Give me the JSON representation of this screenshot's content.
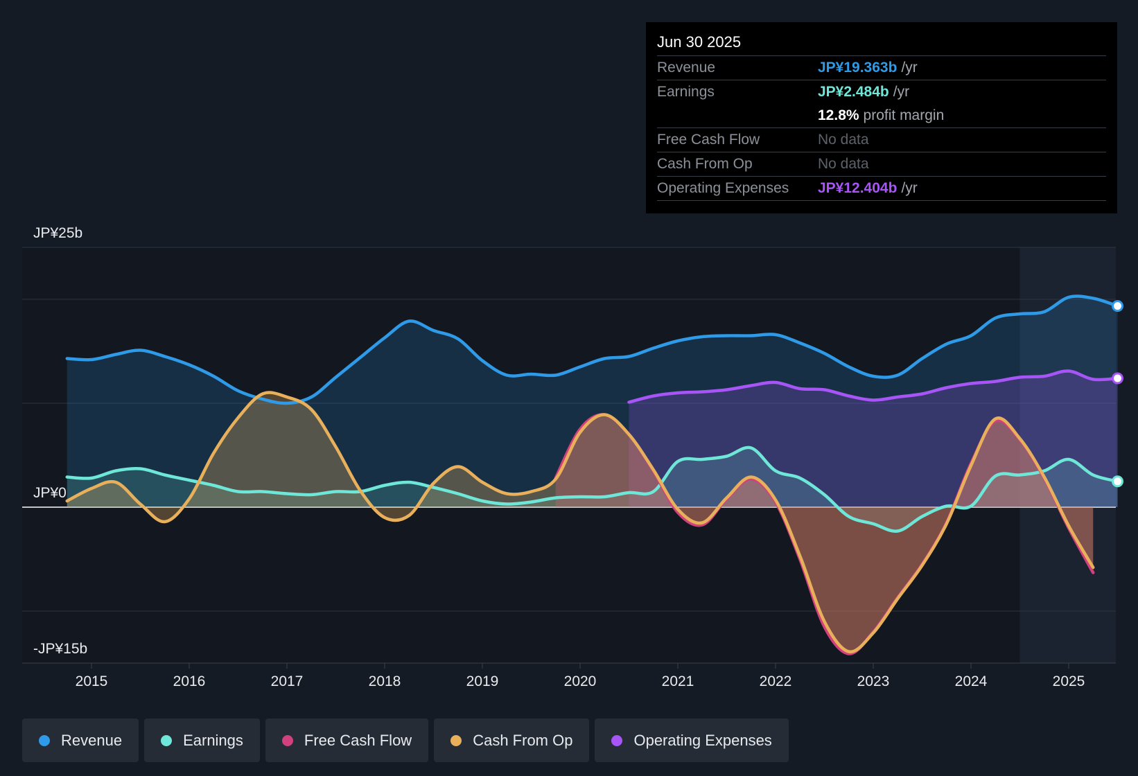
{
  "tooltip": {
    "date": "Jun 30 2025",
    "rows": [
      {
        "label": "Revenue",
        "value": "JP¥19.363b",
        "unit": "/yr",
        "color": "#2f9ae8"
      },
      {
        "label": "Earnings",
        "value": "JP¥2.484b",
        "unit": "/yr",
        "color": "#6ee7d8"
      },
      {
        "label": "",
        "value": "12.8%",
        "unit": "profit margin",
        "color": "#ffffff"
      },
      {
        "label": "Free Cash Flow",
        "value": "No data",
        "unit": "",
        "color": "#5d6269"
      },
      {
        "label": "Cash From Op",
        "value": "No data",
        "unit": "",
        "color": "#5d6269"
      },
      {
        "label": "Operating Expenses",
        "value": "JP¥12.404b",
        "unit": "/yr",
        "color": "#a855f7"
      }
    ]
  },
  "legend": [
    {
      "label": "Revenue",
      "color": "#2f9ae8"
    },
    {
      "label": "Earnings",
      "color": "#6ee7d8"
    },
    {
      "label": "Free Cash Flow",
      "color": "#d0417d"
    },
    {
      "label": "Cash From Op",
      "color": "#e9b05c"
    },
    {
      "label": "Operating Expenses",
      "color": "#a855f7"
    }
  ],
  "chart_data": {
    "type": "line",
    "title": "",
    "y_unit": "JP¥ billions",
    "ylim": [
      -15,
      25
    ],
    "y_axis_labels": [
      {
        "value": 25,
        "label": "JP¥25b"
      },
      {
        "value": 0,
        "label": "JP¥0"
      },
      {
        "value": -15,
        "label": "-JP¥15b"
      }
    ],
    "gridlines": [
      25,
      20,
      10,
      0,
      -10
    ],
    "xlim": [
      2014.3,
      2025.5
    ],
    "x_ticks": [
      {
        "value": 2015,
        "label": "2015"
      },
      {
        "value": 2016,
        "label": "2016"
      },
      {
        "value": 2017,
        "label": "2017"
      },
      {
        "value": 2018,
        "label": "2018"
      },
      {
        "value": 2019,
        "label": "2019"
      },
      {
        "value": 2020,
        "label": "2020"
      },
      {
        "value": 2021,
        "label": "2021"
      },
      {
        "value": 2022,
        "label": "2022"
      },
      {
        "value": 2023,
        "label": "2023"
      },
      {
        "value": 2024,
        "label": "2024"
      },
      {
        "value": 2025,
        "label": "2025"
      }
    ],
    "forecast_shade_start": 2024.5,
    "series": [
      {
        "name": "Revenue",
        "color": "#2f9ae8",
        "points": [
          [
            2014.75,
            14.3
          ],
          [
            2015,
            14.2
          ],
          [
            2015.25,
            14.7
          ],
          [
            2015.5,
            15.1
          ],
          [
            2015.75,
            14.5
          ],
          [
            2016,
            13.7
          ],
          [
            2016.25,
            12.6
          ],
          [
            2016.5,
            11.2
          ],
          [
            2016.75,
            10.4
          ],
          [
            2017,
            10.0
          ],
          [
            2017.25,
            10.6
          ],
          [
            2017.5,
            12.5
          ],
          [
            2017.75,
            14.4
          ],
          [
            2018,
            16.3
          ],
          [
            2018.25,
            17.9
          ],
          [
            2018.5,
            17.0
          ],
          [
            2018.75,
            16.2
          ],
          [
            2019,
            14.1
          ],
          [
            2019.25,
            12.7
          ],
          [
            2019.5,
            12.8
          ],
          [
            2019.75,
            12.7
          ],
          [
            2020,
            13.5
          ],
          [
            2020.25,
            14.3
          ],
          [
            2020.5,
            14.5
          ],
          [
            2020.75,
            15.3
          ],
          [
            2021,
            16.0
          ],
          [
            2021.25,
            16.4
          ],
          [
            2021.5,
            16.5
          ],
          [
            2021.75,
            16.5
          ],
          [
            2022,
            16.6
          ],
          [
            2022.25,
            15.8
          ],
          [
            2022.5,
            14.8
          ],
          [
            2022.75,
            13.5
          ],
          [
            2023,
            12.6
          ],
          [
            2023.25,
            12.7
          ],
          [
            2023.5,
            14.3
          ],
          [
            2023.75,
            15.7
          ],
          [
            2024,
            16.5
          ],
          [
            2024.25,
            18.2
          ],
          [
            2024.5,
            18.6
          ],
          [
            2024.75,
            18.8
          ],
          [
            2025,
            20.2
          ],
          [
            2025.25,
            20.1
          ],
          [
            2025.5,
            19.36
          ]
        ]
      },
      {
        "name": "Operating Expenses",
        "color": "#a855f7",
        "points": [
          [
            2020.5,
            10.1
          ],
          [
            2020.75,
            10.7
          ],
          [
            2021,
            11.0
          ],
          [
            2021.25,
            11.1
          ],
          [
            2021.5,
            11.3
          ],
          [
            2021.75,
            11.7
          ],
          [
            2022,
            12.0
          ],
          [
            2022.25,
            11.4
          ],
          [
            2022.5,
            11.3
          ],
          [
            2022.75,
            10.7
          ],
          [
            2023,
            10.3
          ],
          [
            2023.25,
            10.6
          ],
          [
            2023.5,
            10.9
          ],
          [
            2023.75,
            11.5
          ],
          [
            2024,
            11.9
          ],
          [
            2024.25,
            12.1
          ],
          [
            2024.5,
            12.5
          ],
          [
            2024.75,
            12.6
          ],
          [
            2025,
            13.1
          ],
          [
            2025.25,
            12.3
          ],
          [
            2025.5,
            12.4
          ]
        ]
      },
      {
        "name": "Earnings",
        "color": "#6ee7d8",
        "points": [
          [
            2014.75,
            2.9
          ],
          [
            2015,
            2.8
          ],
          [
            2015.25,
            3.5
          ],
          [
            2015.5,
            3.7
          ],
          [
            2015.75,
            3.1
          ],
          [
            2016,
            2.6
          ],
          [
            2016.25,
            2.1
          ],
          [
            2016.5,
            1.5
          ],
          [
            2016.75,
            1.5
          ],
          [
            2017,
            1.3
          ],
          [
            2017.25,
            1.2
          ],
          [
            2017.5,
            1.5
          ],
          [
            2017.75,
            1.5
          ],
          [
            2018,
            2.1
          ],
          [
            2018.25,
            2.4
          ],
          [
            2018.5,
            1.9
          ],
          [
            2018.75,
            1.3
          ],
          [
            2019,
            0.6
          ],
          [
            2019.25,
            0.3
          ],
          [
            2019.5,
            0.5
          ],
          [
            2019.75,
            0.9
          ],
          [
            2020,
            1.0
          ],
          [
            2020.25,
            1.0
          ],
          [
            2020.5,
            1.4
          ],
          [
            2020.75,
            1.5
          ],
          [
            2021,
            4.4
          ],
          [
            2021.25,
            4.6
          ],
          [
            2021.5,
            4.9
          ],
          [
            2021.75,
            5.7
          ],
          [
            2022,
            3.5
          ],
          [
            2022.25,
            2.8
          ],
          [
            2022.5,
            1.2
          ],
          [
            2022.75,
            -0.9
          ],
          [
            2023,
            -1.6
          ],
          [
            2023.25,
            -2.3
          ],
          [
            2023.5,
            -0.9
          ],
          [
            2023.75,
            0.1
          ],
          [
            2024,
            0.1
          ],
          [
            2024.25,
            3.0
          ],
          [
            2024.5,
            3.1
          ],
          [
            2024.75,
            3.5
          ],
          [
            2025,
            4.6
          ],
          [
            2025.25,
            3.1
          ],
          [
            2025.5,
            2.48
          ]
        ]
      },
      {
        "name": "Free Cash Flow",
        "color": "#d0417d",
        "points": [
          [
            2019.75,
            2.8
          ],
          [
            2020,
            7.5
          ],
          [
            2020.25,
            8.9
          ],
          [
            2020.5,
            7.0
          ],
          [
            2020.75,
            3.5
          ],
          [
            2021,
            -0.5
          ],
          [
            2021.25,
            -1.7
          ],
          [
            2021.5,
            0.8
          ],
          [
            2021.75,
            2.7
          ],
          [
            2022,
            0.5
          ],
          [
            2022.25,
            -5.0
          ],
          [
            2022.5,
            -11.5
          ],
          [
            2022.75,
            -14.1
          ],
          [
            2023,
            -12.0
          ],
          [
            2023.25,
            -8.7
          ],
          [
            2023.5,
            -5.5
          ],
          [
            2023.75,
            -1.5
          ],
          [
            2024,
            4.2
          ],
          [
            2024.25,
            8.3
          ],
          [
            2024.5,
            6.5
          ],
          [
            2024.75,
            2.8
          ],
          [
            2025,
            -2.0
          ],
          [
            2025.25,
            -6.3
          ]
        ]
      },
      {
        "name": "Cash From Op",
        "color": "#e9b05c",
        "points": [
          [
            2014.75,
            0.6
          ],
          [
            2015,
            1.8
          ],
          [
            2015.25,
            2.4
          ],
          [
            2015.5,
            0.3
          ],
          [
            2015.75,
            -1.4
          ],
          [
            2016,
            0.8
          ],
          [
            2016.25,
            5.2
          ],
          [
            2016.5,
            8.6
          ],
          [
            2016.75,
            10.9
          ],
          [
            2017,
            10.6
          ],
          [
            2017.25,
            9.4
          ],
          [
            2017.5,
            5.8
          ],
          [
            2017.75,
            1.6
          ],
          [
            2018,
            -1.0
          ],
          [
            2018.25,
            -0.8
          ],
          [
            2018.5,
            2.3
          ],
          [
            2018.75,
            3.9
          ],
          [
            2019,
            2.4
          ],
          [
            2019.25,
            1.3
          ],
          [
            2019.5,
            1.5
          ],
          [
            2019.75,
            2.7
          ],
          [
            2020,
            7.2
          ],
          [
            2020.25,
            8.9
          ],
          [
            2020.5,
            7.0
          ],
          [
            2020.75,
            3.6
          ],
          [
            2021,
            -0.2
          ],
          [
            2021.25,
            -1.5
          ],
          [
            2021.5,
            0.9
          ],
          [
            2021.75,
            2.9
          ],
          [
            2022,
            0.7
          ],
          [
            2022.25,
            -4.7
          ],
          [
            2022.5,
            -11.0
          ],
          [
            2022.75,
            -13.9
          ],
          [
            2023,
            -12.1
          ],
          [
            2023.25,
            -8.8
          ],
          [
            2023.5,
            -5.6
          ],
          [
            2023.75,
            -1.6
          ],
          [
            2024,
            4.0
          ],
          [
            2024.25,
            8.5
          ],
          [
            2024.5,
            6.6
          ],
          [
            2024.75,
            2.9
          ],
          [
            2025,
            -1.8
          ],
          [
            2025.25,
            -5.8
          ]
        ]
      }
    ]
  }
}
